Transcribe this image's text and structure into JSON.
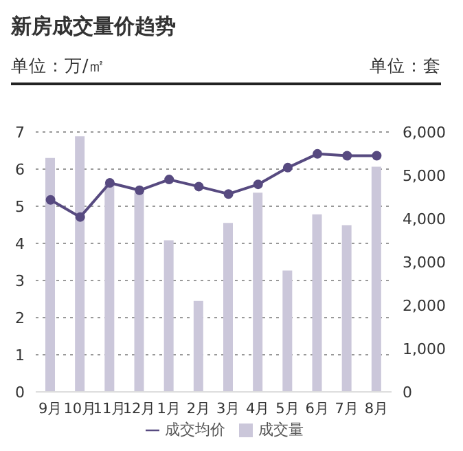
{
  "chart_data": {
    "type": "bar",
    "title": "新房成交量价趋势",
    "ylabel": "单位：万/㎡",
    "y2label": "单位：套",
    "categories": [
      "9月",
      "10月",
      "11月",
      "12月",
      "1月",
      "2月",
      "3月",
      "4月",
      "5月",
      "6月",
      "7月",
      "8月"
    ],
    "series": [
      {
        "name": "成交均价",
        "type": "line",
        "color": "#574a80",
        "marker": "circle",
        "values": [
          5.17,
          4.71,
          5.63,
          5.43,
          5.72,
          5.53,
          5.33,
          5.59,
          6.04,
          6.41,
          6.36,
          6.36
        ]
      },
      {
        "name": "成交量",
        "axis": "y2",
        "color": "#cbc7da",
        "values": [
          5400,
          5900,
          4800,
          4600,
          3500,
          2100,
          3900,
          4600,
          2800,
          4100,
          3850,
          5200
        ]
      }
    ],
    "ylim": [
      0,
      7
    ],
    "yticks": [
      0,
      1,
      2,
      3,
      4,
      5,
      6,
      7
    ],
    "y2lim": [
      0,
      6000
    ],
    "y2ticks": [
      {
        "value": 0,
        "label": "0"
      },
      {
        "value": 1000,
        "label": "1,000"
      },
      {
        "value": 2000,
        "label": "2,000"
      },
      {
        "value": 3000,
        "label": "3,000"
      },
      {
        "value": 4000,
        "label": "4,000"
      },
      {
        "value": 5000,
        "label": "5,000"
      },
      {
        "value": 6000,
        "label": "6,000"
      }
    ],
    "grid": "y",
    "legend": "bottom"
  }
}
